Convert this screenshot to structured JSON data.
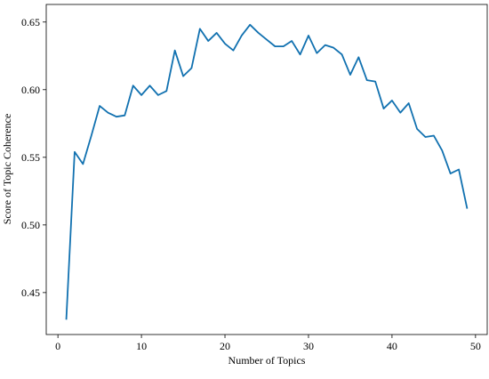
{
  "chart_data": {
    "type": "line",
    "x_label": "Number of Topics",
    "y_label": "Score of Topic Coherence",
    "x": [
      1,
      2,
      3,
      4,
      5,
      6,
      7,
      8,
      9,
      10,
      11,
      12,
      13,
      14,
      15,
      16,
      17,
      18,
      19,
      20,
      21,
      22,
      23,
      24,
      25,
      26,
      27,
      28,
      29,
      30,
      31,
      32,
      33,
      34,
      35,
      36,
      37,
      38,
      39,
      40,
      41,
      42,
      43,
      44,
      45,
      46,
      47,
      48,
      49
    ],
    "series": [
      {
        "name": "Score of Topic Coherence",
        "color": "#1171b0",
        "values": [
          0.43,
          0.554,
          0.545,
          0.566,
          0.588,
          0.583,
          0.58,
          0.581,
          0.603,
          0.596,
          0.603,
          0.596,
          0.599,
          0.629,
          0.61,
          0.616,
          0.645,
          0.636,
          0.642,
          0.634,
          0.629,
          0.64,
          0.648,
          0.642,
          0.637,
          0.632,
          0.632,
          0.636,
          0.626,
          0.64,
          0.627,
          0.633,
          0.631,
          0.626,
          0.611,
          0.624,
          0.607,
          0.606,
          0.586,
          0.592,
          0.583,
          0.59,
          0.571,
          0.565,
          0.566,
          0.555,
          0.538,
          0.541,
          0.512
        ]
      }
    ],
    "xlim": [
      -1.4,
      51.4
    ],
    "xticks": [
      0,
      10,
      20,
      30,
      40,
      50
    ],
    "ylim": [
      0.419,
      0.663
    ],
    "yticks": [
      0.45,
      {
        "value": 0.5,
        "label": "0.50"
      },
      0.55,
      {
        "value": 0.6,
        "label": "0.60"
      },
      0.65
    ],
    "grid": false
  }
}
